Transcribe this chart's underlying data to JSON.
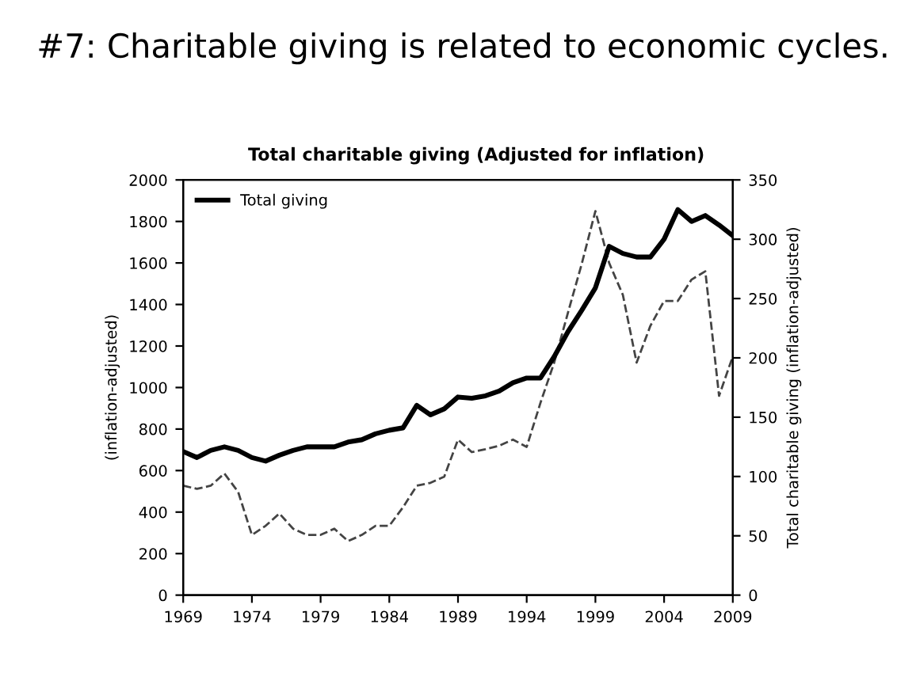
{
  "chart_data": {
    "type": "line",
    "title": "#7: Charitable giving is related to economic cycles.",
    "subtitle": "Total charitable giving (Adjusted for inflation)",
    "ylabel": "(inflation-adjusted)",
    "y2label": "Total charitable giving (inflation-adjusted)",
    "x": [
      1969,
      1970,
      1971,
      1972,
      1973,
      1974,
      1975,
      1976,
      1977,
      1978,
      1979,
      1980,
      1981,
      1982,
      1983,
      1984,
      1985,
      1986,
      1987,
      1988,
      1989,
      1990,
      1991,
      1992,
      1993,
      1994,
      1995,
      1996,
      1997,
      1998,
      1999,
      2000,
      2001,
      2002,
      2003,
      2004,
      2005,
      2006,
      2007,
      2008,
      2009
    ],
    "series": [
      {
        "color": "#444444",
        "line_style": "dashed",
        "axis": "y",
        "values": [
          527,
          512,
          527,
          586,
          497,
          290,
          334,
          393,
          320,
          290,
          290,
          320,
          260,
          290,
          334,
          334,
          423,
          527,
          541,
          571,
          749,
          689,
          703,
          720,
          749,
          714,
          926,
          1120,
          1360,
          1594,
          1850,
          1600,
          1446,
          1120,
          1297,
          1417,
          1417,
          1520,
          1560,
          960,
          1150
        ]
      },
      {
        "name": "Total giving",
        "color": "#000000",
        "line_style": "solid",
        "axis": "y2",
        "values": [
          121,
          116,
          122,
          125,
          122,
          116,
          113,
          118,
          122,
          125,
          125,
          125,
          129,
          131,
          136,
          139,
          141,
          160,
          152,
          157,
          167,
          166,
          168,
          172,
          179,
          183,
          183,
          201,
          222,
          240,
          259,
          294,
          288,
          285,
          285,
          300,
          325,
          315,
          320,
          312,
          303
        ]
      }
    ],
    "xlim": [
      1969,
      2009
    ],
    "xticks": [
      1969,
      1974,
      1979,
      1984,
      1989,
      1994,
      1999,
      2004,
      2009
    ],
    "ylim": [
      0,
      2000
    ],
    "yticks": [
      0,
      200,
      400,
      600,
      800,
      1000,
      1200,
      1400,
      1600,
      1800,
      2000
    ],
    "y2lim": [
      0,
      350
    ],
    "y2ticks": [
      0,
      50,
      100,
      150,
      200,
      250,
      300,
      350
    ],
    "grid": false,
    "legend": "top left",
    "marker": "none"
  }
}
